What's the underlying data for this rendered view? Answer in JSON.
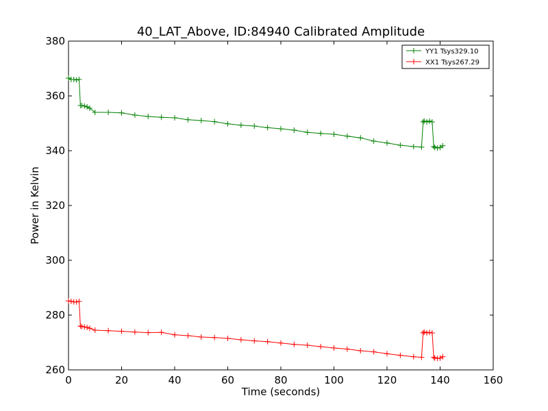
{
  "chart_data": {
    "type": "line",
    "title": "40_LAT_Above, ID:84940 Calibrated Amplitude",
    "xlabel": "Time (seconds)",
    "ylabel": "Power in Kelvin",
    "xlim": [
      0,
      160
    ],
    "ylim": [
      260,
      380
    ],
    "xticks": [
      "0",
      "20",
      "40",
      "60",
      "80",
      "100",
      "120",
      "140",
      "160"
    ],
    "yticks": [
      "260",
      "280",
      "300",
      "320",
      "340",
      "360",
      "380"
    ],
    "grid": false,
    "legend_position": "upper right",
    "colors": {
      "YY1": "#008000",
      "XX1": "#ff0000"
    },
    "series": [
      {
        "name": "YY1 Tsys329.10",
        "color": "#008000",
        "marker": "+",
        "x": [
          0,
          1,
          2,
          3,
          4,
          4.5,
          5,
          6,
          7,
          8,
          10,
          15,
          20,
          25,
          30,
          35,
          40,
          45,
          50,
          55,
          60,
          65,
          70,
          75,
          80,
          85,
          90,
          95,
          100,
          105,
          110,
          115,
          120,
          125,
          130,
          133,
          133.6,
          134,
          135,
          136,
          137,
          137.6,
          138,
          139,
          140,
          141
        ],
        "y": [
          366.5,
          366,
          366,
          365.8,
          366,
          356.5,
          356.5,
          356.3,
          356,
          355.5,
          354,
          354,
          353.8,
          353,
          352.5,
          352.2,
          352,
          351.3,
          351,
          350.6,
          349.8,
          349.3,
          349,
          348.4,
          348,
          347.5,
          346.7,
          346.3,
          346,
          345.3,
          344.7,
          343.5,
          342.8,
          342,
          341.5,
          341.3,
          350.5,
          350.8,
          350.5,
          350.8,
          350.5,
          341.5,
          341.2,
          341,
          341.2,
          341.8
        ]
      },
      {
        "name": "XX1 Tsys267.29",
        "color": "#ff0000",
        "marker": "+",
        "x": [
          0,
          1,
          2,
          3,
          4,
          4.5,
          5,
          6,
          7,
          8,
          10,
          15,
          20,
          25,
          30,
          35,
          40,
          45,
          50,
          55,
          60,
          65,
          70,
          75,
          80,
          85,
          90,
          95,
          100,
          105,
          110,
          115,
          120,
          125,
          130,
          133,
          133.6,
          134,
          135,
          136,
          137,
          137.6,
          138,
          139,
          140,
          141
        ],
        "y": [
          285.2,
          285,
          284.8,
          284.8,
          285,
          276,
          275.8,
          275.7,
          275.5,
          275.2,
          274.5,
          274.3,
          274.1,
          273.8,
          273.6,
          273.7,
          272.8,
          272.5,
          272,
          271.8,
          271.5,
          271,
          270.6,
          270.3,
          269.8,
          269.3,
          269,
          268.5,
          268,
          267.6,
          267,
          266.6,
          265.9,
          265.3,
          264.8,
          264.6,
          273.5,
          273.8,
          273.5,
          273.7,
          273.5,
          264.6,
          264.3,
          264.2,
          264.3,
          264.8
        ]
      }
    ]
  }
}
